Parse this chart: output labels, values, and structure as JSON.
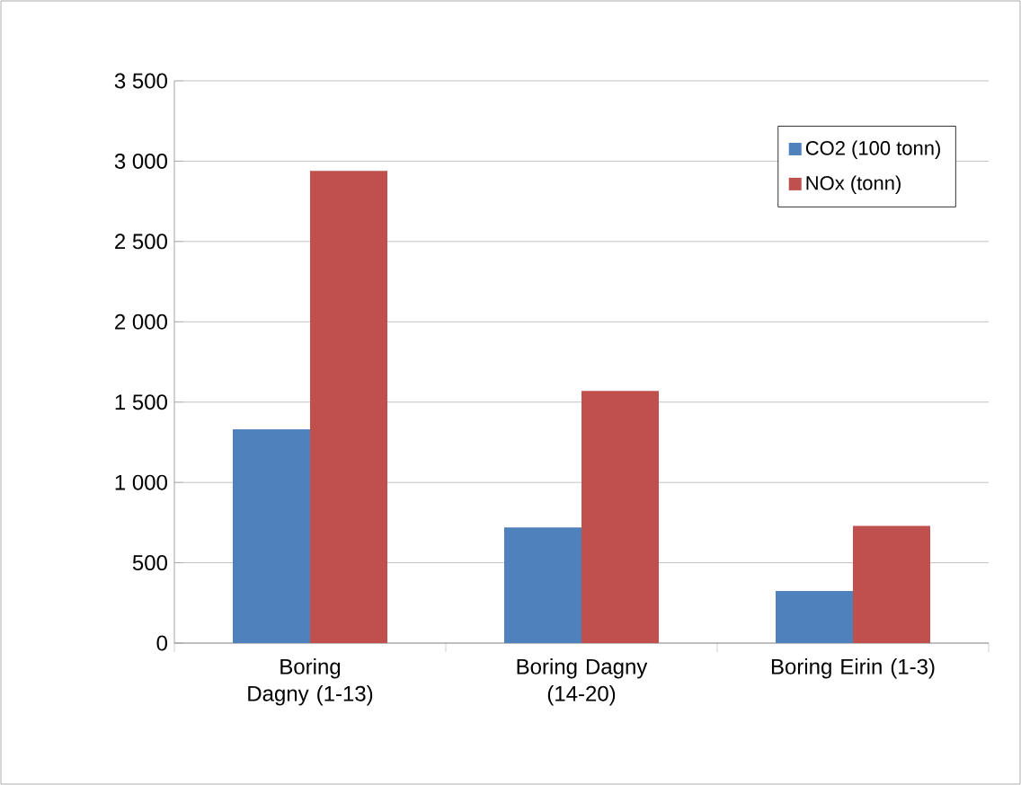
{
  "chart_data": {
    "type": "bar",
    "categories": [
      "Boring Dagny (1-13)",
      "Boring Dagny (14-20)",
      "Boring Eirin (1-3)"
    ],
    "series": [
      {
        "name": "CO2 (100 tonn)",
        "color": "#4f81bd",
        "values": [
          1330,
          720,
          325
        ]
      },
      {
        "name": "NOx (tonn)",
        "color": "#c0504d",
        "values": [
          2940,
          1570,
          730
        ]
      }
    ],
    "ylim": [
      0,
      3500
    ],
    "yticks": [
      0,
      500,
      {
        "value": 1000,
        "label": "1 000"
      },
      {
        "value": 1500,
        "label": "1 500"
      },
      {
        "value": 2000,
        "label": "2 000"
      },
      {
        "value": 2500,
        "label": "2 500"
      },
      {
        "value": 3000,
        "label": "3 000"
      },
      {
        "value": 3500,
        "label": "3 500"
      }
    ],
    "grid": "y",
    "legend": "top right"
  }
}
